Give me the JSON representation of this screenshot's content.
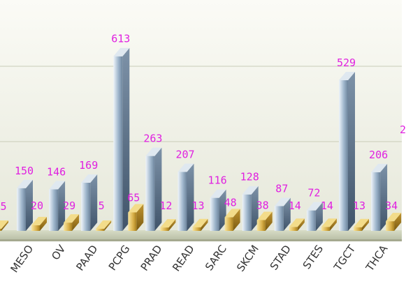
{
  "chart_data": {
    "type": "bar",
    "categories": [
      "MESO",
      "OV",
      "PAAD",
      "PCPG",
      "PRAD",
      "READ",
      "SARC",
      "SKCM",
      "STAD",
      "STES",
      "TGCT",
      "THCA"
    ],
    "series": [
      {
        "values": [
          150,
          146,
          169,
          613,
          263,
          207,
          116,
          128,
          87,
          72,
          529,
          206
        ],
        "color": "#8fa8c0"
      },
      {
        "values": [
          20,
          29,
          5,
          65,
          12,
          13,
          48,
          38,
          14,
          14,
          13,
          34
        ],
        "color": "#c8a030"
      }
    ],
    "partial_left_label": "5",
    "partial_right_label": "2",
    "grid": true,
    "style": "3d-cylinder-bars"
  }
}
